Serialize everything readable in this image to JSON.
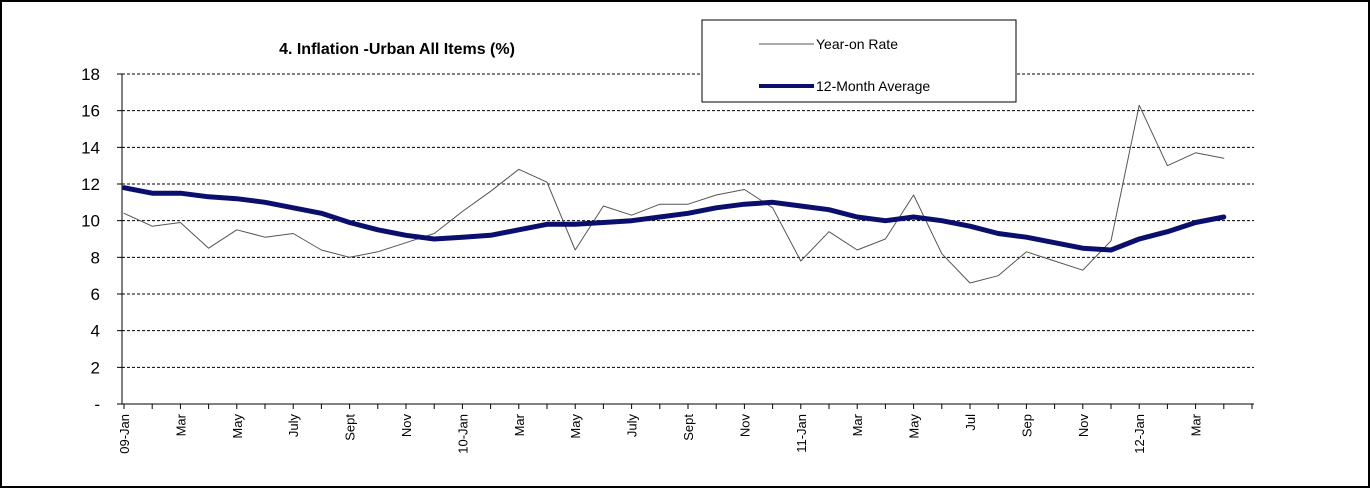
{
  "chart_data": {
    "type": "line",
    "title": "4. Inflation -Urban All Items (%)",
    "xlabel": "",
    "ylabel": "",
    "ylim": [
      0,
      18
    ],
    "y_ticks": [
      0,
      2,
      4,
      6,
      8,
      10,
      12,
      14,
      16,
      18
    ],
    "y_tick_labels": [
      "-",
      "2",
      "4",
      "6",
      "8",
      "10",
      "12",
      "14",
      "16",
      "18"
    ],
    "grid": "horizontal dashed",
    "legend_position": "top-center",
    "x_tick_labels": [
      "09-Jan",
      "Mar",
      "May",
      "July",
      "Sept",
      "Nov",
      "10-Jan",
      "Mar",
      "May",
      "July",
      "Sept",
      "Nov",
      "11-Jan",
      "Mar",
      "May",
      "Jul",
      "Sep",
      "Nov",
      "12-Jan",
      "Mar"
    ],
    "x_tick_month_index": [
      0,
      2,
      4,
      6,
      8,
      10,
      12,
      14,
      16,
      18,
      20,
      22,
      24,
      26,
      28,
      30,
      32,
      34,
      36,
      38
    ],
    "series": [
      {
        "name": "Year-on Rate",
        "color": "#555555",
        "values": [
          10.4,
          9.7,
          9.9,
          8.5,
          9.5,
          9.1,
          9.3,
          8.4,
          8.0,
          8.3,
          8.8,
          9.3,
          10.5,
          11.6,
          12.8,
          12.1,
          8.4,
          10.8,
          10.3,
          10.9,
          10.9,
          11.4,
          11.7,
          10.7,
          7.8,
          9.4,
          8.4,
          9.0,
          11.4,
          8.2,
          6.6,
          7.0,
          8.3,
          7.8,
          7.3,
          8.9,
          16.3,
          13.0,
          13.7,
          13.4
        ]
      },
      {
        "name": "12-Month Average",
        "color": "#0a0f6e",
        "values": [
          11.8,
          11.5,
          11.5,
          11.3,
          11.2,
          11.0,
          10.7,
          10.4,
          9.9,
          9.5,
          9.2,
          9.0,
          9.1,
          9.2,
          9.5,
          9.8,
          9.8,
          9.9,
          10.0,
          10.2,
          10.4,
          10.7,
          10.9,
          11.0,
          10.8,
          10.6,
          10.2,
          10.0,
          10.2,
          10.0,
          9.7,
          9.3,
          9.1,
          8.8,
          8.5,
          8.4,
          9.0,
          9.4,
          9.9,
          10.2
        ]
      }
    ]
  }
}
